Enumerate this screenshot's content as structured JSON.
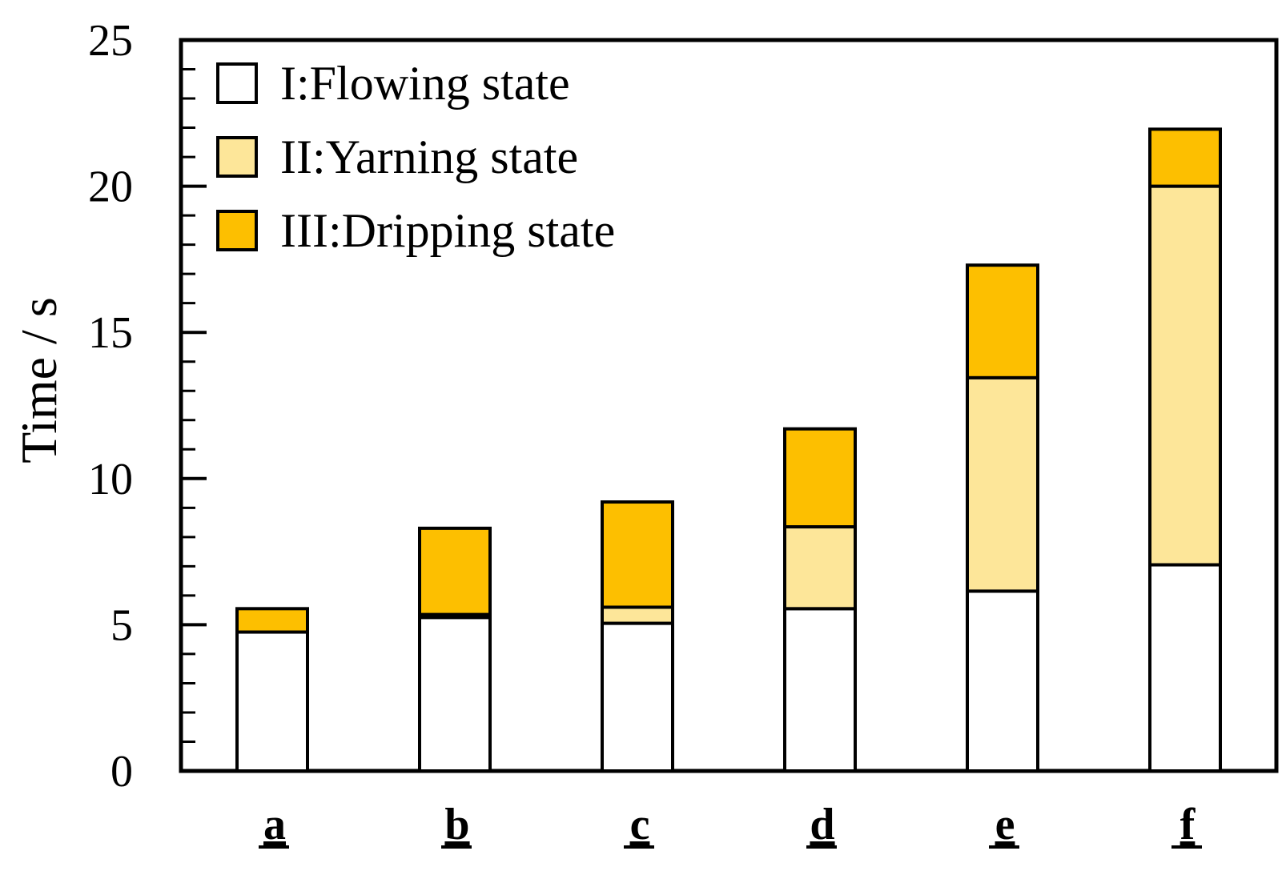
{
  "chart_data": {
    "type": "bar",
    "stacked": true,
    "title": "",
    "xlabel": "",
    "ylabel": "Time / s",
    "ylim": [
      0,
      25
    ],
    "y_ticks": [
      0,
      5,
      10,
      15,
      20,
      25
    ],
    "y_minor_step": 1,
    "categories": [
      "a",
      "b",
      "c",
      "d",
      "e",
      "f"
    ],
    "series": [
      {
        "name": "I:Flowing state",
        "color": "#ffffff",
        "values": [
          4.75,
          5.25,
          5.05,
          5.55,
          6.15,
          7.05
        ]
      },
      {
        "name": "II:Yarning state",
        "color": "#fde699",
        "values": [
          0.0,
          0.1,
          0.55,
          2.8,
          7.3,
          12.95
        ]
      },
      {
        "name": "III:Dripping state",
        "color": "#fdbf00",
        "values": [
          0.8,
          2.95,
          3.6,
          3.35,
          3.85,
          1.95
        ]
      }
    ],
    "legend_position": "top-left"
  }
}
